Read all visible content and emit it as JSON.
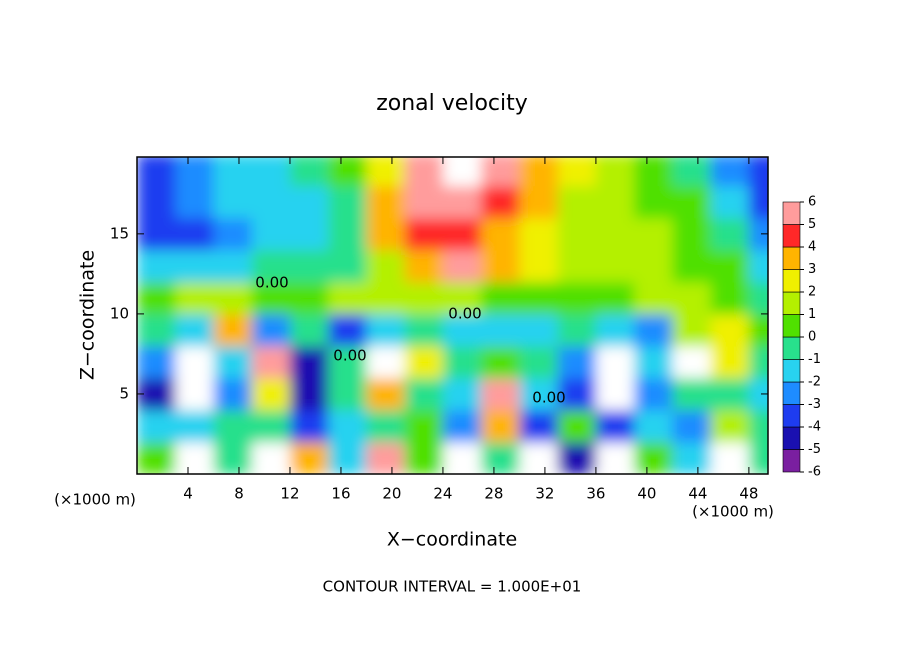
{
  "chart_data": {
    "type": "heatmap",
    "title": "zonal velocity",
    "x_label": "X−coordinate",
    "y_label": "Z−coordinate",
    "x_unit_label": "(×1000 m)",
    "y_unit_label": "(×1000 m)",
    "footer": "CONTOUR INTERVAL = 1.000E+01",
    "contour_labels": [
      "0.00",
      "0.00",
      "0.00",
      "0.00"
    ],
    "xlim": [
      0,
      49.5
    ],
    "ylim": [
      0,
      19.8
    ],
    "xticks": [
      4,
      8,
      12,
      16,
      20,
      24,
      28,
      32,
      36,
      40,
      44,
      48
    ],
    "yticks": [
      5,
      10,
      15
    ],
    "x": [
      1.5,
      4.5,
      7.5,
      10.5,
      13.5,
      16.5,
      19.5,
      22.5,
      25.5,
      28.5,
      31.5,
      34.5,
      37.5,
      40.5,
      43.5,
      46.5,
      49.5
    ],
    "y": [
      1,
      3,
      5,
      7,
      9,
      11,
      13,
      15,
      17,
      19
    ],
    "z": [
      [
        0,
        7,
        -1,
        7,
        3,
        -2,
        6,
        0,
        7,
        -1,
        7,
        -5,
        7,
        0,
        -2,
        7,
        -1
      ],
      [
        -2,
        -2,
        -1,
        -1,
        -4,
        -2,
        -1,
        0,
        -3,
        3,
        -4,
        0,
        -4,
        -2,
        -3,
        1,
        -1
      ],
      [
        -5,
        7,
        -3,
        2,
        -5,
        -1,
        3,
        -1,
        -2,
        5,
        -2,
        -4,
        8,
        -3,
        -1,
        -1,
        -2
      ],
      [
        -3,
        7,
        -2,
        5,
        -5,
        -1,
        7,
        2,
        -1,
        0,
        -1,
        -3,
        7,
        -2,
        7,
        2,
        -1
      ],
      [
        -1,
        -2,
        3,
        -3,
        -1,
        -4,
        -2,
        -1,
        -2,
        -2,
        -2,
        -1,
        -2,
        -3,
        1,
        2,
        0
      ],
      [
        0,
        1,
        1,
        0,
        0,
        1,
        1,
        1,
        1,
        0,
        0,
        0,
        0,
        1,
        1,
        0,
        -1
      ],
      [
        -2,
        -2,
        -2,
        -1,
        -1,
        -1,
        1,
        3,
        5,
        3,
        2,
        1,
        1,
        1,
        0,
        0,
        -2
      ],
      [
        -4,
        -4,
        -3,
        -2,
        -2,
        -1,
        3,
        4,
        4,
        3,
        2,
        1,
        1,
        1,
        0,
        -1,
        -3
      ],
      [
        -4,
        -3,
        -2,
        -2,
        -2,
        -1,
        3,
        5,
        5,
        4,
        3,
        1,
        1,
        0,
        0,
        -2,
        -4
      ],
      [
        -4,
        -3,
        -2,
        -2,
        -1,
        0,
        2,
        5,
        7,
        5,
        3,
        2,
        1,
        0,
        -1,
        -3,
        -4
      ]
    ],
    "levels": [
      -6,
      -5,
      -4,
      -3,
      -2,
      -1,
      0,
      1,
      2,
      3,
      4,
      5,
      6
    ],
    "colors": [
      "#7a1fa0",
      "#1a10b0",
      "#1e3cf0",
      "#1e8cff",
      "#28d2f0",
      "#28e08c",
      "#50e000",
      "#b4f000",
      "#f0f000",
      "#ffb400",
      "#ff2828",
      "#ff9c9c"
    ],
    "out_of_range_color": "#ffffff"
  }
}
